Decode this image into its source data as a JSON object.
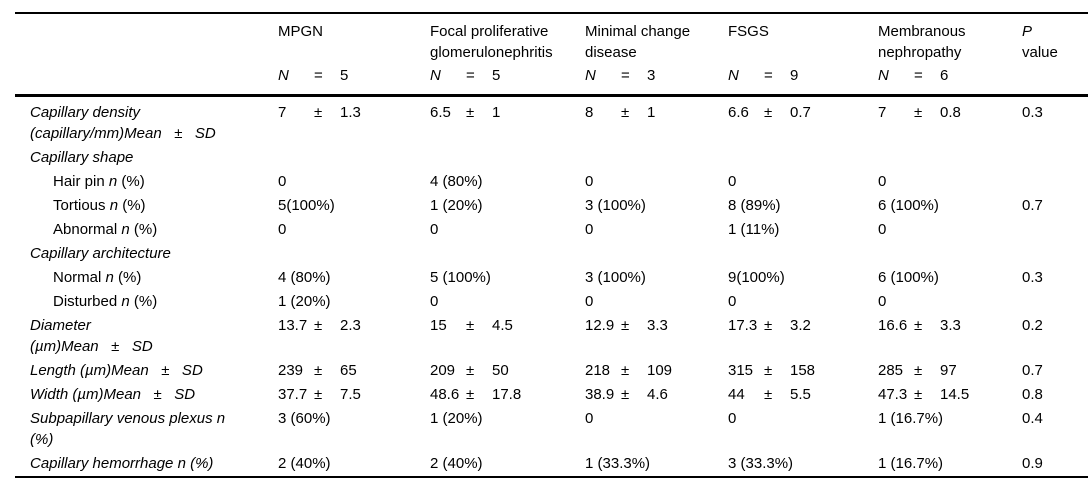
{
  "table": {
    "pm": "±",
    "n_label": "N",
    "n_eq": "=",
    "columns": [
      {
        "name": "MPGN",
        "n": "5"
      },
      {
        "name": "Focal proliferative\nglomerulonephritis",
        "n": "5"
      },
      {
        "name": "Minimal change\ndisease",
        "n": "3"
      },
      {
        "name": "FSGS",
        "n": "9"
      },
      {
        "name": "Membranous\nnephropathy",
        "n": "6"
      }
    ],
    "p_header": {
      "line1": "P",
      "line2": "value"
    },
    "rows": [
      {
        "indent": false,
        "label": [
          {
            "text": "Capillary density\n(capillary/mm)Mean   ±   SD",
            "italic": true
          }
        ],
        "values": [
          {
            "mean": "7",
            "sd": "1.3"
          },
          {
            "mean": "6.5",
            "sd": "1"
          },
          {
            "mean": "8",
            "sd": "1"
          },
          {
            "mean": "6.6",
            "sd": "0.7"
          },
          {
            "mean": "7",
            "sd": "0.8"
          }
        ],
        "p": "0.3"
      },
      {
        "indent": false,
        "label": [
          {
            "text": "Capillary shape",
            "italic": true
          }
        ],
        "values": [
          "",
          "",
          "",
          "",
          ""
        ],
        "p": ""
      },
      {
        "indent": true,
        "label": [
          {
            "text": "Hair pin ",
            "italic": false
          },
          {
            "text": "n",
            "italic": true
          },
          {
            "text": " (%)",
            "italic": false
          }
        ],
        "values": [
          "0",
          "4 (80%)",
          "0",
          "0",
          "0"
        ],
        "p": ""
      },
      {
        "indent": true,
        "label": [
          {
            "text": "Tortious ",
            "italic": false
          },
          {
            "text": "n",
            "italic": true
          },
          {
            "text": " (%)",
            "italic": false
          }
        ],
        "values": [
          "5(100%)",
          "1 (20%)",
          "3 (100%)",
          "8 (89%)",
          "6 (100%)"
        ],
        "p": "0.7"
      },
      {
        "indent": true,
        "label": [
          {
            "text": "Abnormal ",
            "italic": false
          },
          {
            "text": "n",
            "italic": true
          },
          {
            "text": " (%)",
            "italic": false
          }
        ],
        "values": [
          "0",
          "0",
          "0",
          "1 (11%)",
          "0"
        ],
        "p": ""
      },
      {
        "indent": false,
        "label": [
          {
            "text": "Capillary architecture",
            "italic": true
          }
        ],
        "values": [
          "",
          "",
          "",
          "",
          ""
        ],
        "p": ""
      },
      {
        "indent": true,
        "label": [
          {
            "text": "Normal ",
            "italic": false
          },
          {
            "text": "n",
            "italic": true
          },
          {
            "text": " (%)",
            "italic": false
          }
        ],
        "values": [
          "4 (80%)",
          "5 (100%)",
          "3 (100%)",
          "9(100%)",
          "6 (100%)"
        ],
        "p": "0.3"
      },
      {
        "indent": true,
        "label": [
          {
            "text": "Disturbed ",
            "italic": false
          },
          {
            "text": "n",
            "italic": true
          },
          {
            "text": " (%)",
            "italic": false
          }
        ],
        "values": [
          "1 (20%)",
          "0",
          "0",
          "0",
          "0"
        ],
        "p": ""
      },
      {
        "indent": false,
        "label": [
          {
            "text": "Diameter\n(µm)Mean   ±   SD",
            "italic": true
          }
        ],
        "values": [
          {
            "mean": "13.7",
            "sd": "2.3"
          },
          {
            "mean": "15",
            "sd": "4.5"
          },
          {
            "mean": "12.9",
            "sd": "3.3"
          },
          {
            "mean": "17.3",
            "sd": "3.2"
          },
          {
            "mean": "16.6",
            "sd": "3.3"
          }
        ],
        "p": "0.2"
      },
      {
        "indent": false,
        "label": [
          {
            "text": "Length (µm)Mean   ±   SD",
            "italic": true
          }
        ],
        "values": [
          {
            "mean": "239",
            "sd": "65"
          },
          {
            "mean": "209",
            "sd": "50"
          },
          {
            "mean": "218",
            "sd": "109"
          },
          {
            "mean": "315",
            "sd": "158"
          },
          {
            "mean": "285",
            "sd": "97"
          }
        ],
        "p": "0.7"
      },
      {
        "indent": false,
        "label": [
          {
            "text": "Width (µm)Mean   ±   SD",
            "italic": true
          }
        ],
        "values": [
          {
            "mean": "37.7",
            "sd": "7.5"
          },
          {
            "mean": "48.6",
            "sd": "17.8"
          },
          {
            "mean": "38.9",
            "sd": "4.6"
          },
          {
            "mean": "44",
            "sd": "5.5"
          },
          {
            "mean": "47.3",
            "sd": "14.5"
          }
        ],
        "p": "0.8"
      },
      {
        "indent": false,
        "label": [
          {
            "text": "Subpapillary venous plexus n\n(%)",
            "italic": true
          }
        ],
        "values": [
          "3 (60%)",
          "1 (20%)",
          "0",
          "0",
          "1 (16.7%)"
        ],
        "p": "0.4"
      },
      {
        "indent": false,
        "label": [
          {
            "text": "Capillary hemorrhage n (%)",
            "italic": true
          }
        ],
        "values": [
          "2 (40%)",
          "2 (40%)",
          "1 (33.3%)",
          "3 (33.3%)",
          "1 (16.7%)"
        ],
        "p": "0.9"
      }
    ]
  }
}
